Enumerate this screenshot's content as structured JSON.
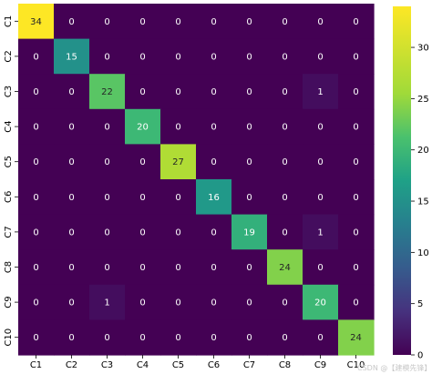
{
  "chart_data": {
    "type": "heatmap",
    "title": "",
    "xlabel": "",
    "ylabel": "",
    "row_labels": [
      "C1",
      "C2",
      "C3",
      "C4",
      "C5",
      "C6",
      "C7",
      "C8",
      "C9",
      "C10"
    ],
    "col_labels": [
      "C1",
      "C2",
      "C3",
      "C4",
      "C5",
      "C6",
      "C7",
      "C8",
      "C9",
      "C10"
    ],
    "values": [
      [
        34,
        0,
        0,
        0,
        0,
        0,
        0,
        0,
        0,
        0
      ],
      [
        0,
        15,
        0,
        0,
        0,
        0,
        0,
        0,
        0,
        0
      ],
      [
        0,
        0,
        22,
        0,
        0,
        0,
        0,
        0,
        1,
        0
      ],
      [
        0,
        0,
        0,
        20,
        0,
        0,
        0,
        0,
        0,
        0
      ],
      [
        0,
        0,
        0,
        0,
        27,
        0,
        0,
        0,
        0,
        0
      ],
      [
        0,
        0,
        0,
        0,
        0,
        16,
        0,
        0,
        0,
        0
      ],
      [
        0,
        0,
        0,
        0,
        0,
        0,
        19,
        0,
        1,
        0
      ],
      [
        0,
        0,
        0,
        0,
        0,
        0,
        0,
        24,
        0,
        0
      ],
      [
        0,
        0,
        1,
        0,
        0,
        0,
        0,
        0,
        20,
        0
      ],
      [
        0,
        0,
        0,
        0,
        0,
        0,
        0,
        0,
        0,
        24
      ]
    ],
    "colormap": "viridis",
    "colorbar": {
      "min": 0,
      "max": 34,
      "ticks": [
        0,
        5,
        10,
        15,
        20,
        25,
        30
      ]
    },
    "annotations": true,
    "grid": false
  },
  "watermark": "CSDN @【建模先锋】"
}
